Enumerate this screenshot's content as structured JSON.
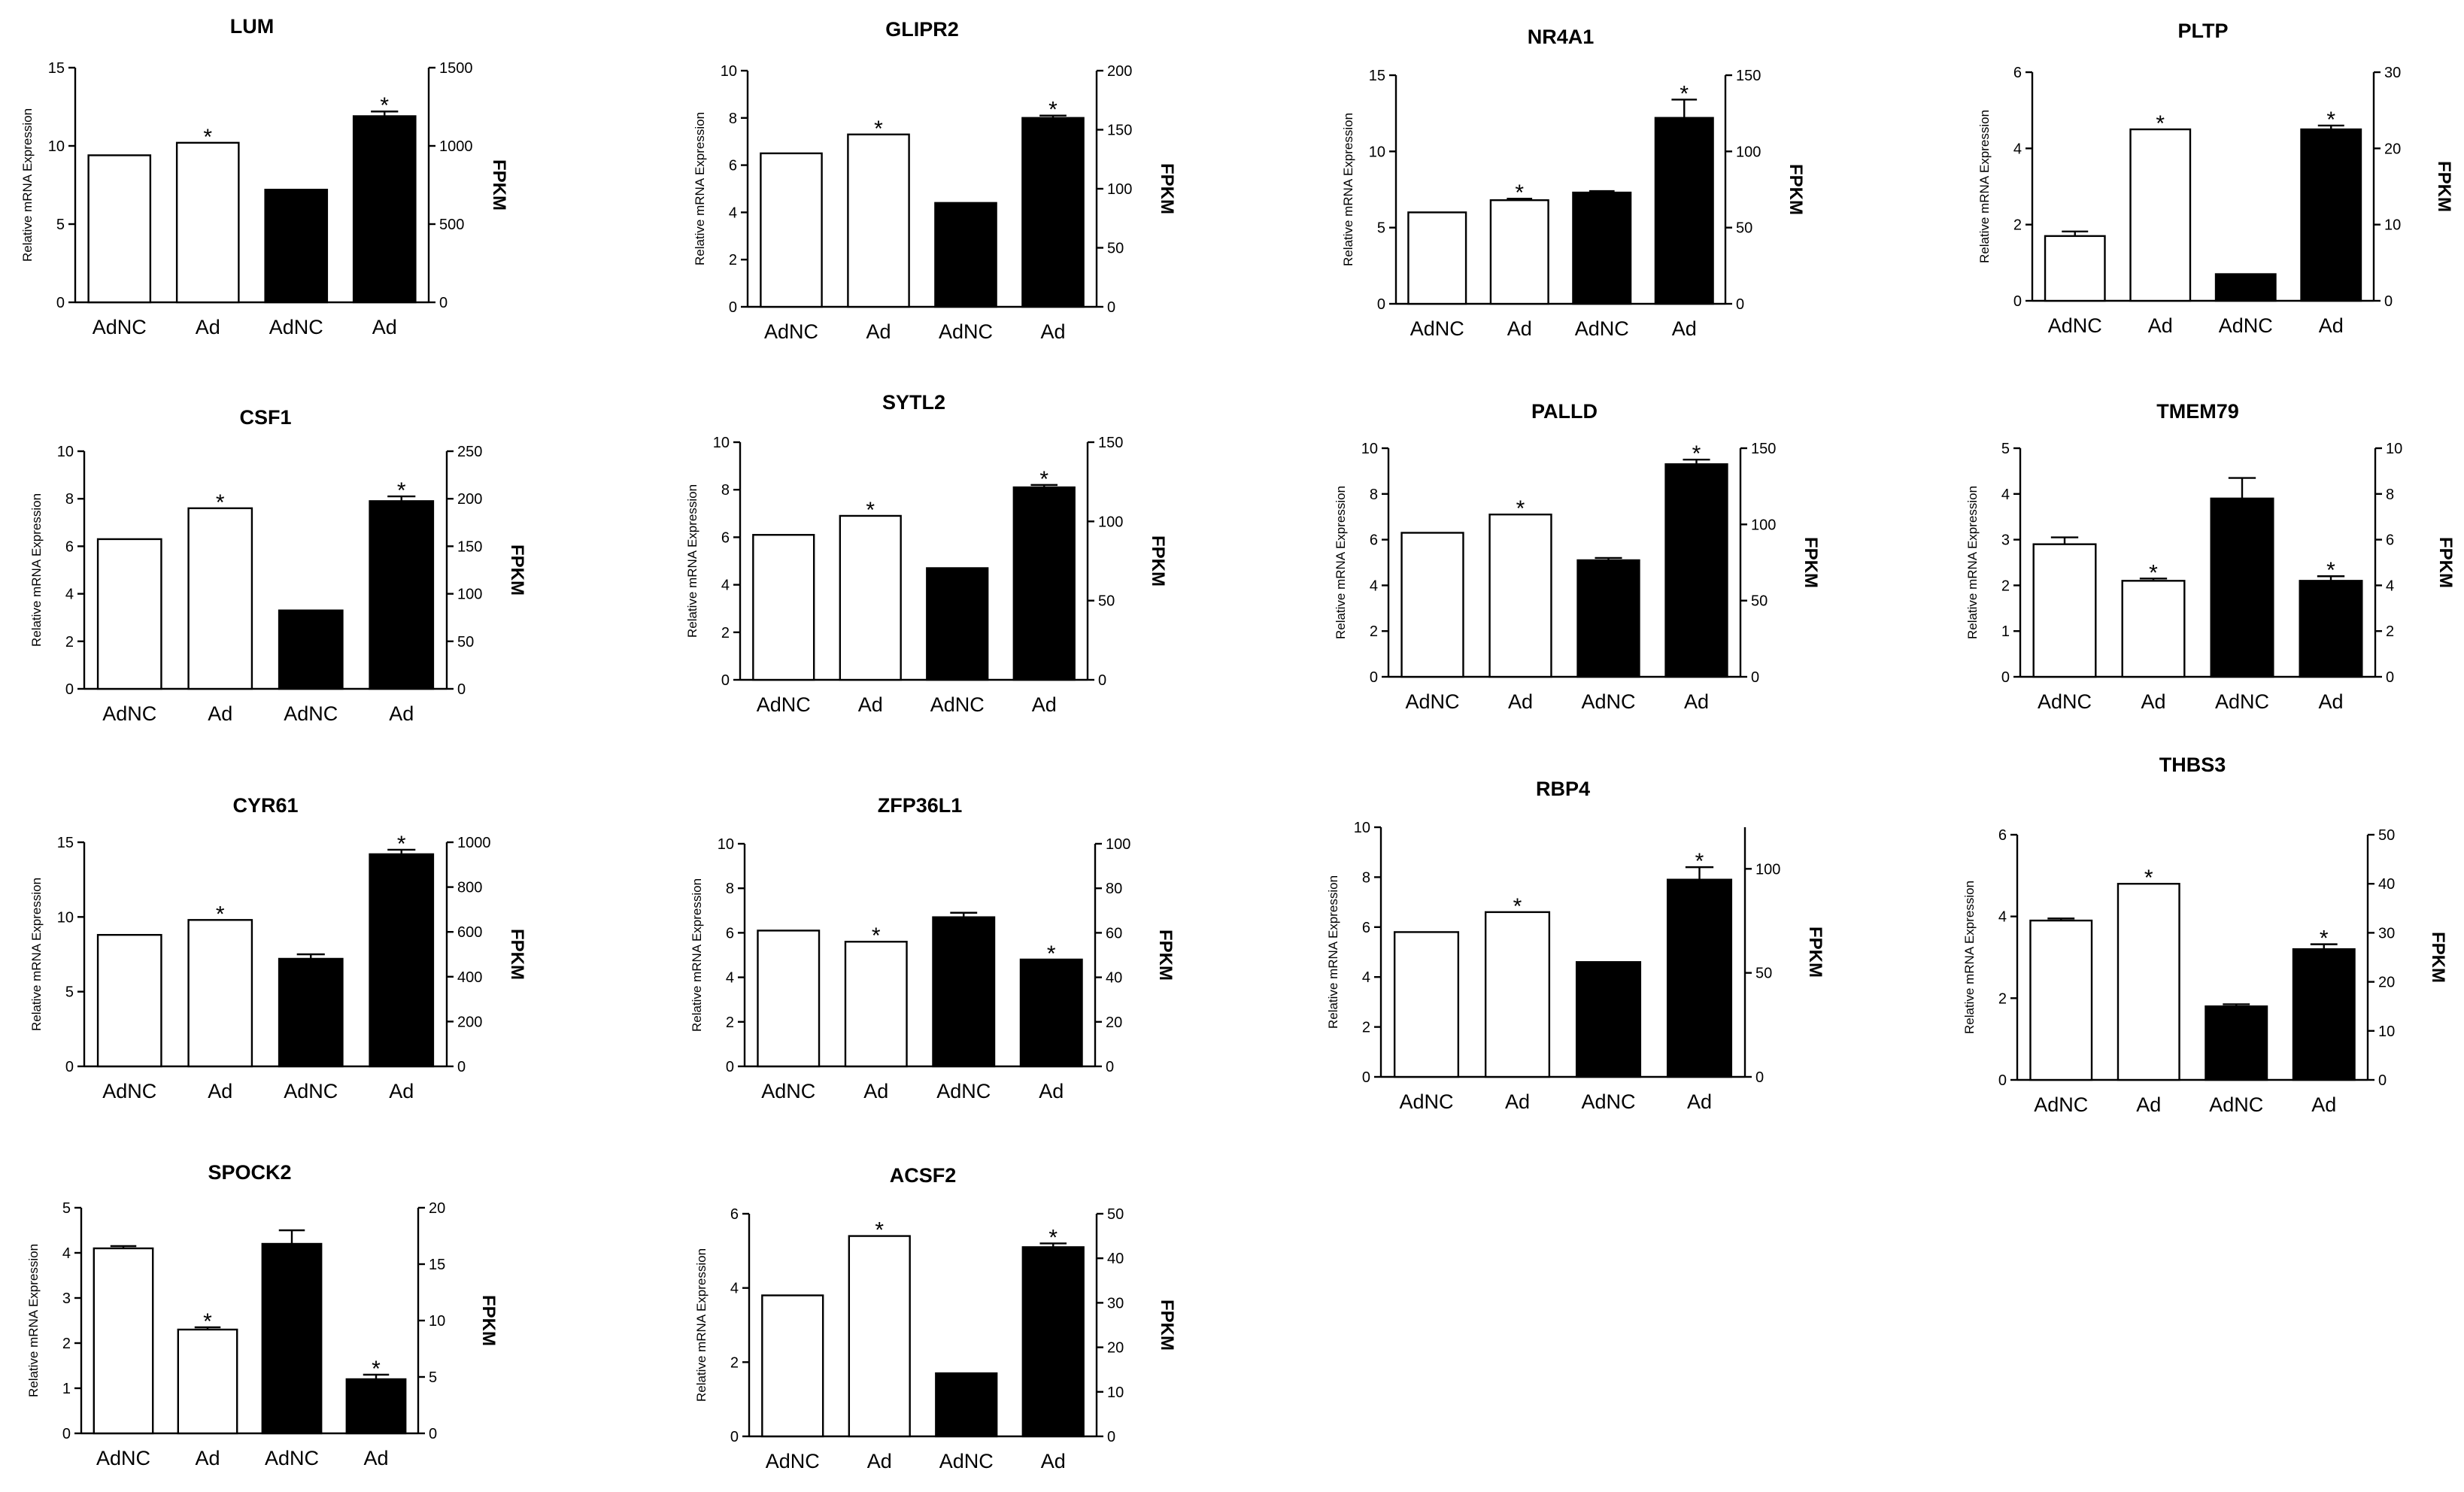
{
  "left_axis_label": "Relative mRNA Expression",
  "right_axis_label": "FPKM",
  "chart_data": [
    {
      "type": "bar",
      "title": "LUM",
      "categories": [
        "AdNC",
        "Ad",
        "AdNC",
        "Ad"
      ],
      "values": [
        9.4,
        10.2,
        7.2,
        11.9
      ],
      "errors": [
        0,
        0,
        0,
        0.3
      ],
      "significant": [
        false,
        true,
        false,
        true
      ],
      "ylim": [
        0,
        15
      ],
      "yticks": [
        0,
        5,
        10,
        15
      ],
      "y2lim": [
        0,
        1500
      ],
      "y2ticks": [
        0,
        500,
        1000,
        1500
      ],
      "fill": [
        "#ffffff",
        "#ffffff",
        "#000000",
        "#000000"
      ]
    },
    {
      "type": "bar",
      "title": "GLIPR2",
      "categories": [
        "AdNC",
        "Ad",
        "AdNC",
        "Ad"
      ],
      "values": [
        6.5,
        7.3,
        4.4,
        8.0
      ],
      "errors": [
        0,
        0,
        0,
        0.1
      ],
      "significant": [
        false,
        true,
        false,
        true
      ],
      "ylim": [
        0,
        10
      ],
      "yticks": [
        0,
        2,
        4,
        6,
        8,
        10
      ],
      "y2lim": [
        0,
        200
      ],
      "y2ticks": [
        0,
        50,
        100,
        150,
        200
      ],
      "fill": [
        "#ffffff",
        "#ffffff",
        "#000000",
        "#000000"
      ]
    },
    {
      "type": "bar",
      "title": "NR4A1",
      "categories": [
        "AdNC",
        "Ad",
        "AdNC",
        "Ad"
      ],
      "values": [
        6.0,
        6.8,
        7.3,
        12.2
      ],
      "errors": [
        0,
        0.1,
        0.1,
        1.2
      ],
      "significant": [
        false,
        true,
        false,
        true
      ],
      "ylim": [
        0,
        15
      ],
      "yticks": [
        0,
        5,
        10,
        15
      ],
      "y2lim": [
        0,
        150
      ],
      "y2ticks": [
        0,
        50,
        100,
        150
      ],
      "fill": [
        "#ffffff",
        "#ffffff",
        "#000000",
        "#000000"
      ]
    },
    {
      "type": "bar",
      "title": "PLTP",
      "categories": [
        "AdNC",
        "Ad",
        "AdNC",
        "Ad"
      ],
      "values": [
        1.7,
        4.5,
        0.7,
        4.5
      ],
      "errors": [
        0.12,
        0,
        0,
        0.1
      ],
      "significant": [
        false,
        true,
        false,
        true
      ],
      "ylim": [
        0,
        6
      ],
      "yticks": [
        0,
        2,
        4,
        6
      ],
      "y2lim": [
        0,
        30
      ],
      "y2ticks": [
        0,
        10,
        20,
        30
      ],
      "fill": [
        "#ffffff",
        "#ffffff",
        "#000000",
        "#000000"
      ]
    },
    {
      "type": "bar",
      "title": "CSF1",
      "categories": [
        "AdNC",
        "Ad",
        "AdNC",
        "Ad"
      ],
      "values": [
        6.3,
        7.6,
        3.3,
        7.9
      ],
      "errors": [
        0,
        0,
        0,
        0.2
      ],
      "significant": [
        false,
        true,
        false,
        true
      ],
      "ylim": [
        0,
        10
      ],
      "yticks": [
        0,
        2,
        4,
        6,
        8,
        10
      ],
      "y2lim": [
        0,
        250
      ],
      "y2ticks": [
        0,
        50,
        100,
        150,
        200,
        250
      ],
      "fill": [
        "#ffffff",
        "#ffffff",
        "#000000",
        "#000000"
      ]
    },
    {
      "type": "bar",
      "title": "SYTL2",
      "categories": [
        "AdNC",
        "Ad",
        "AdNC",
        "Ad"
      ],
      "values": [
        6.1,
        6.9,
        4.7,
        8.1
      ],
      "errors": [
        0,
        0,
        0,
        0.1
      ],
      "significant": [
        false,
        true,
        false,
        true
      ],
      "ylim": [
        0,
        10
      ],
      "yticks": [
        0,
        2,
        4,
        6,
        8,
        10
      ],
      "y2lim": [
        0,
        150
      ],
      "y2ticks": [
        0,
        50,
        100,
        150
      ],
      "fill": [
        "#ffffff",
        "#ffffff",
        "#000000",
        "#000000"
      ]
    },
    {
      "type": "bar",
      "title": "PALLD",
      "categories": [
        "AdNC",
        "Ad",
        "AdNC",
        "Ad"
      ],
      "values": [
        6.3,
        7.1,
        5.1,
        9.3
      ],
      "errors": [
        0,
        0,
        0.1,
        0.2
      ],
      "significant": [
        false,
        true,
        false,
        true
      ],
      "ylim": [
        0,
        10
      ],
      "yticks": [
        0,
        2,
        4,
        6,
        8,
        10
      ],
      "y2lim": [
        0,
        150
      ],
      "y2ticks": [
        0,
        50,
        100,
        150
      ],
      "fill": [
        "#ffffff",
        "#ffffff",
        "#000000",
        "#000000"
      ]
    },
    {
      "type": "bar",
      "title": "TMEM79",
      "categories": [
        "AdNC",
        "Ad",
        "AdNC",
        "Ad"
      ],
      "values": [
        2.9,
        2.1,
        3.9,
        2.1
      ],
      "errors": [
        0.15,
        0.05,
        0.45,
        0.1
      ],
      "significant": [
        false,
        true,
        false,
        true
      ],
      "ylim": [
        0,
        5
      ],
      "yticks": [
        0,
        1,
        2,
        3,
        4,
        5
      ],
      "y2lim": [
        0,
        10
      ],
      "y2ticks": [
        0,
        2,
        4,
        6,
        8,
        10
      ],
      "fill": [
        "#ffffff",
        "#ffffff",
        "#000000",
        "#000000"
      ]
    },
    {
      "type": "bar",
      "title": "CYR61",
      "categories": [
        "AdNC",
        "Ad",
        "AdNC",
        "Ad"
      ],
      "values": [
        8.8,
        9.8,
        7.2,
        14.2
      ],
      "errors": [
        0,
        0,
        0.3,
        0.3
      ],
      "significant": [
        false,
        true,
        false,
        true
      ],
      "ylim": [
        0,
        15
      ],
      "yticks": [
        0,
        5,
        10,
        15
      ],
      "y2lim": [
        0,
        1000
      ],
      "y2ticks": [
        0,
        200,
        400,
        600,
        800,
        1000
      ],
      "fill": [
        "#ffffff",
        "#ffffff",
        "#000000",
        "#000000"
      ]
    },
    {
      "type": "bar",
      "title": "ZFP36L1",
      "categories": [
        "AdNC",
        "Ad",
        "AdNC",
        "Ad"
      ],
      "values": [
        6.1,
        5.6,
        6.7,
        4.8
      ],
      "errors": [
        0,
        0,
        0.2,
        0
      ],
      "significant": [
        false,
        true,
        false,
        true
      ],
      "ylim": [
        0,
        10
      ],
      "yticks": [
        0,
        2,
        4,
        6,
        8,
        10
      ],
      "y2lim": [
        0,
        100
      ],
      "y2ticks": [
        0,
        20,
        40,
        60,
        80,
        100
      ],
      "fill": [
        "#ffffff",
        "#ffffff",
        "#000000",
        "#000000"
      ]
    },
    {
      "type": "bar",
      "title": "RBP4",
      "categories": [
        "AdNC",
        "Ad",
        "AdNC",
        "Ad"
      ],
      "values": [
        5.8,
        6.6,
        4.6,
        7.9
      ],
      "errors": [
        0,
        0,
        0,
        0.5
      ],
      "significant": [
        false,
        true,
        false,
        true
      ],
      "ylim": [
        0,
        10
      ],
      "yticks": [
        0,
        2,
        4,
        6,
        8,
        10
      ],
      "y2lim": [
        0,
        120
      ],
      "y2ticks": [
        0,
        50,
        100
      ],
      "fill": [
        "#ffffff",
        "#ffffff",
        "#000000",
        "#000000"
      ]
    },
    {
      "type": "bar",
      "title": "THBS3",
      "categories": [
        "AdNC",
        "Ad",
        "AdNC",
        "Ad"
      ],
      "values": [
        3.9,
        4.8,
        1.8,
        3.2
      ],
      "errors": [
        0.05,
        0,
        0.05,
        0.12
      ],
      "significant": [
        false,
        true,
        false,
        true
      ],
      "ylim": [
        0,
        6
      ],
      "yticks": [
        0,
        2,
        4,
        6
      ],
      "y2lim": [
        0,
        50
      ],
      "y2ticks": [
        0,
        10,
        20,
        30,
        40,
        50
      ],
      "fill": [
        "#ffffff",
        "#ffffff",
        "#000000",
        "#000000"
      ]
    },
    {
      "type": "bar",
      "title": "SPOCK2",
      "categories": [
        "AdNC",
        "Ad",
        "AdNC",
        "Ad"
      ],
      "values": [
        4.1,
        2.3,
        4.2,
        1.2
      ],
      "errors": [
        0.05,
        0.05,
        0.3,
        0.1
      ],
      "significant": [
        false,
        true,
        false,
        true
      ],
      "ylim": [
        0,
        5
      ],
      "yticks": [
        0,
        1,
        2,
        3,
        4,
        5
      ],
      "y2lim": [
        0,
        20
      ],
      "y2ticks": [
        0,
        5,
        10,
        15,
        20
      ],
      "fill": [
        "#ffffff",
        "#ffffff",
        "#000000",
        "#000000"
      ]
    },
    {
      "type": "bar",
      "title": "ACSF2",
      "categories": [
        "AdNC",
        "Ad",
        "AdNC",
        "Ad"
      ],
      "values": [
        3.8,
        5.4,
        1.7,
        5.1
      ],
      "errors": [
        0,
        0,
        0,
        0.1
      ],
      "significant": [
        false,
        true,
        false,
        true
      ],
      "ylim": [
        0,
        6
      ],
      "yticks": [
        0,
        2,
        4,
        6
      ],
      "y2lim": [
        0,
        50
      ],
      "y2ticks": [
        0,
        10,
        20,
        30,
        40,
        50
      ],
      "fill": [
        "#ffffff",
        "#ffffff",
        "#000000",
        "#000000"
      ]
    }
  ]
}
